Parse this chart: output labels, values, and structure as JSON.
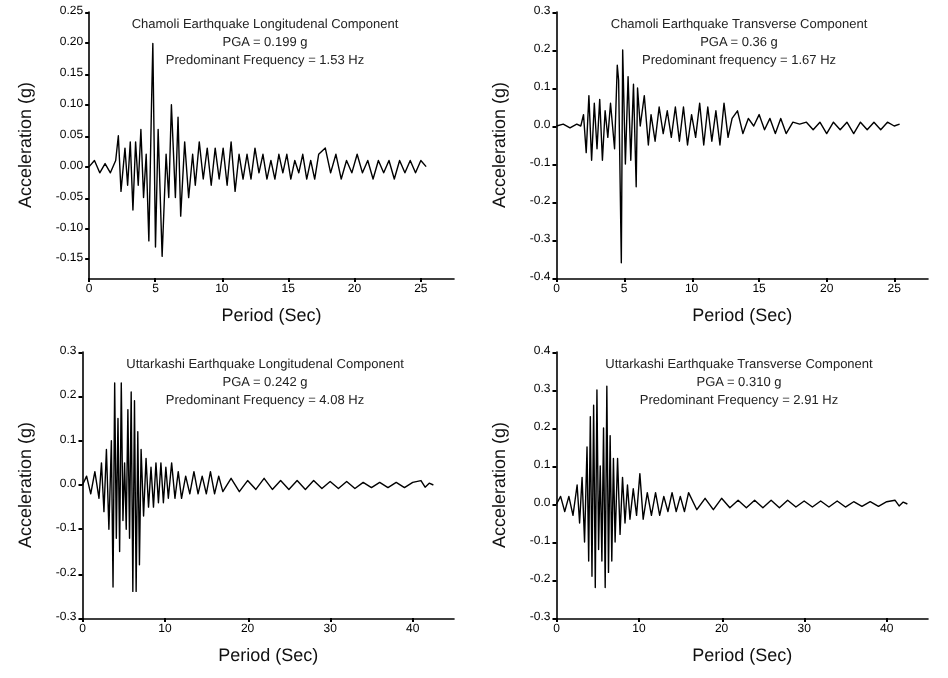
{
  "chart_data": [
    {
      "type": "line",
      "title": "Chamoli Earthquake Longitudenal Component",
      "annotations": [
        "PGA = 0.199 g",
        "Predominant Frequency = 1.53 Hz"
      ],
      "xlabel": "Period (Sec)",
      "ylabel": "Acceleration (g)",
      "grid": false,
      "marker": "none",
      "xlim": [
        0,
        27.5
      ],
      "ylim": [
        -0.18,
        0.25
      ],
      "xticks": [
        0,
        5,
        10,
        15,
        20,
        25
      ],
      "yticks": [
        {
          "value": -0.15,
          "label": "-0.15"
        },
        {
          "value": -0.1,
          "label": "-0.10"
        },
        {
          "value": -0.05,
          "label": "-0.05"
        },
        {
          "value": 0,
          "label": "0.00"
        },
        {
          "value": 0.05,
          "label": "0.05"
        },
        {
          "value": 0.1,
          "label": "0.10"
        },
        {
          "value": 0.15,
          "label": "0.15"
        },
        {
          "value": 0.2,
          "label": "0.20"
        },
        {
          "value": 0.25,
          "label": "0.25"
        }
      ],
      "series": [
        {
          "color": "#000000",
          "x": [
            0,
            0.4,
            0.8,
            1.2,
            1.6,
            2.0,
            2.2,
            2.4,
            2.7,
            2.9,
            3.1,
            3.3,
            3.5,
            3.7,
            3.9,
            4.1,
            4.3,
            4.5,
            4.7,
            4.8,
            5.0,
            5.2,
            5.5,
            5.8,
            6.0,
            6.2,
            6.5,
            6.7,
            6.9,
            7.2,
            7.5,
            7.8,
            8.0,
            8.3,
            8.6,
            8.9,
            9.2,
            9.5,
            9.8,
            10.1,
            10.4,
            10.7,
            11.0,
            11.3,
            11.6,
            11.9,
            12.2,
            12.5,
            12.8,
            13.1,
            13.4,
            13.7,
            14.0,
            14.3,
            14.6,
            14.9,
            15.2,
            15.5,
            15.8,
            16.1,
            16.4,
            16.7,
            17.0,
            17.3,
            17.8,
            18.2,
            18.6,
            19.0,
            19.4,
            19.8,
            20.2,
            20.6,
            21.0,
            21.4,
            21.8,
            22.2,
            22.6,
            23.0,
            23.4,
            23.8,
            24.2,
            24.6,
            25.0,
            25.4
          ],
          "values": [
            0,
            0.01,
            -0.01,
            0.005,
            -0.01,
            0.01,
            0.05,
            -0.04,
            0.03,
            -0.03,
            0.04,
            -0.07,
            0.04,
            -0.03,
            0.06,
            -0.05,
            0.02,
            -0.12,
            0.1,
            0.199,
            -0.13,
            0.06,
            -0.145,
            0.02,
            -0.05,
            0.1,
            -0.05,
            0.08,
            -0.08,
            0.04,
            -0.05,
            0.02,
            -0.03,
            0.04,
            -0.02,
            0.03,
            -0.03,
            0.03,
            -0.02,
            0.03,
            -0.03,
            0.04,
            -0.04,
            0.02,
            -0.02,
            0.02,
            -0.02,
            0.03,
            -0.01,
            0.02,
            -0.02,
            0.01,
            -0.02,
            0.02,
            -0.01,
            0.02,
            -0.02,
            0.01,
            -0.01,
            0.02,
            -0.02,
            0.01,
            -0.02,
            0.02,
            0.03,
            -0.01,
            0.02,
            -0.02,
            0.01,
            -0.01,
            0.02,
            -0.01,
            0.01,
            -0.02,
            0.01,
            -0.01,
            0.01,
            -0.02,
            0.01,
            -0.01,
            0.01,
            -0.01,
            0.01,
            0
          ]
        }
      ]
    },
    {
      "type": "line",
      "title": "Chamoli Earthquake Transverse Component",
      "annotations": [
        "PGA = 0.36 g",
        "Predominant frequency = 1.67 Hz"
      ],
      "xlabel": "Period (Sec)",
      "ylabel": "Acceleration (g)",
      "grid": false,
      "marker": "none",
      "xlim": [
        0,
        27.5
      ],
      "ylim": [
        -0.4,
        0.3
      ],
      "xticks": [
        0,
        5,
        10,
        15,
        20,
        25
      ],
      "yticks": [
        -0.4,
        -0.3,
        -0.2,
        -0.1,
        {
          "value": 0,
          "label": "0.0"
        },
        0.1,
        0.2,
        0.3
      ],
      "series": [
        {
          "color": "#000000",
          "x": [
            0,
            0.5,
            1,
            1.5,
            1.8,
            2.0,
            2.2,
            2.4,
            2.6,
            2.8,
            3.0,
            3.2,
            3.4,
            3.6,
            3.8,
            4.0,
            4.3,
            4.5,
            4.6,
            4.8,
            4.9,
            5.1,
            5.3,
            5.5,
            5.7,
            5.9,
            6.0,
            6.2,
            6.5,
            6.8,
            7.0,
            7.3,
            7.6,
            7.9,
            8.2,
            8.5,
            8.8,
            9.1,
            9.4,
            9.7,
            10.0,
            10.3,
            10.6,
            10.9,
            11.2,
            11.5,
            11.8,
            12.1,
            12.4,
            12.7,
            13.0,
            13.4,
            13.8,
            14.2,
            14.6,
            15.0,
            15.4,
            15.8,
            16.2,
            16.6,
            17.0,
            17.5,
            18,
            18.5,
            19,
            19.5,
            20,
            20.5,
            21,
            21.5,
            22,
            22.5,
            23,
            23.5,
            24,
            24.5,
            25,
            25.4
          ],
          "values": [
            0,
            0.005,
            -0.005,
            0.005,
            0,
            0.03,
            -0.07,
            0.08,
            -0.09,
            0.06,
            -0.06,
            0.07,
            -0.09,
            0.04,
            -0.03,
            0.06,
            -0.06,
            0.16,
            0.12,
            -0.36,
            0.2,
            -0.1,
            0.13,
            -0.09,
            0.11,
            -0.16,
            0.1,
            0,
            0.08,
            -0.05,
            0.03,
            -0.04,
            0.05,
            -0.02,
            0.04,
            -0.03,
            0.05,
            -0.04,
            0.05,
            -0.05,
            0.03,
            -0.03,
            0.06,
            -0.05,
            0.05,
            -0.04,
            0.04,
            -0.05,
            0.06,
            -0.03,
            0.02,
            0.04,
            -0.02,
            0.02,
            0,
            0.03,
            -0.01,
            0.02,
            -0.02,
            0.02,
            -0.02,
            0.01,
            0.005,
            0.01,
            -0.01,
            0.01,
            -0.02,
            0.01,
            -0.01,
            0.01,
            -0.02,
            0.01,
            -0.01,
            0.01,
            -0.01,
            0.01,
            0,
            0.005
          ]
        }
      ]
    },
    {
      "type": "line",
      "title": "Uttarkashi Earthquake Longitudenal Component",
      "annotations": [
        "PGA = 0.242 g",
        "Predominant Frequency = 4.08 Hz"
      ],
      "xlabel": "Period (Sec)",
      "ylabel": "Acceleration (g)",
      "grid": false,
      "marker": "none",
      "xlim": [
        0,
        45
      ],
      "ylim": [
        -0.3,
        0.3
      ],
      "xticks": [
        0,
        10,
        20,
        30,
        40
      ],
      "yticks": [
        -0.3,
        -0.2,
        -0.1,
        {
          "value": 0,
          "label": "0.0"
        },
        0.1,
        0.2,
        0.3
      ],
      "series": [
        {
          "color": "#000000",
          "x": [
            0,
            0.5,
            1,
            1.5,
            2,
            2.3,
            2.6,
            2.9,
            3.2,
            3.5,
            3.7,
            3.9,
            4.1,
            4.3,
            4.5,
            4.7,
            4.9,
            5.1,
            5.3,
            5.5,
            5.7,
            5.9,
            6.1,
            6.3,
            6.5,
            6.7,
            6.9,
            7.1,
            7.4,
            7.7,
            8.0,
            8.3,
            8.6,
            8.9,
            9.2,
            9.5,
            9.8,
            10.1,
            10.4,
            10.8,
            11.2,
            11.6,
            12,
            12.5,
            13,
            13.5,
            14,
            14.5,
            15,
            15.5,
            16,
            16.5,
            17,
            18,
            19,
            20,
            21,
            22,
            23,
            24,
            25,
            26,
            27,
            28,
            29,
            30,
            31,
            32,
            33,
            34,
            35,
            36,
            37,
            38,
            39,
            40,
            41,
            41.5,
            42,
            42.5
          ],
          "values": [
            0,
            0.02,
            -0.02,
            0.03,
            -0.03,
            0.05,
            -0.06,
            0.08,
            -0.1,
            0.1,
            -0.23,
            0.23,
            -0.12,
            0.15,
            -0.15,
            0.23,
            -0.08,
            0.05,
            -0.1,
            0.17,
            -0.12,
            0.21,
            -0.24,
            0.19,
            -0.24,
            0.12,
            -0.18,
            0.08,
            -0.07,
            0.06,
            -0.05,
            0.04,
            -0.05,
            0.05,
            -0.04,
            0.05,
            -0.04,
            0.04,
            -0.03,
            0.05,
            -0.03,
            0.03,
            -0.03,
            0.02,
            -0.02,
            0.03,
            -0.02,
            0.02,
            -0.02,
            0.03,
            -0.02,
            0.02,
            -0.015,
            0.015,
            -0.015,
            0.01,
            -0.01,
            0.015,
            -0.01,
            0.01,
            -0.01,
            0.01,
            -0.01,
            0.01,
            -0.008,
            0.008,
            -0.008,
            0.008,
            -0.008,
            0.006,
            -0.006,
            0.006,
            -0.006,
            0.006,
            -0.006,
            0.006,
            0.01,
            -0.005,
            0.004,
            0
          ]
        }
      ]
    },
    {
      "type": "line",
      "title": "Uttarkashi Earthquake Transverse Component",
      "annotations": [
        "PGA = 0.310 g",
        "Predominant Frequency = 2.91 Hz"
      ],
      "xlabel": "Period (Sec)",
      "ylabel": "Acceleration (g)",
      "grid": false,
      "marker": "none",
      "xlim": [
        0,
        45
      ],
      "ylim": [
        -0.3,
        0.4
      ],
      "xticks": [
        0,
        10,
        20,
        30,
        40
      ],
      "yticks": [
        -0.3,
        -0.2,
        -0.1,
        {
          "value": 0,
          "label": "0.0"
        },
        0.1,
        0.2,
        0.3,
        0.4
      ],
      "series": [
        {
          "color": "#000000",
          "x": [
            0,
            0.5,
            1,
            1.5,
            2,
            2.5,
            2.8,
            3.1,
            3.4,
            3.7,
            3.9,
            4.1,
            4.3,
            4.5,
            4.7,
            4.9,
            5.1,
            5.3,
            5.5,
            5.7,
            5.9,
            6.1,
            6.3,
            6.5,
            6.7,
            6.9,
            7.1,
            7.4,
            7.7,
            8.0,
            8.3,
            8.6,
            8.9,
            9.3,
            9.7,
            10.1,
            10.5,
            11,
            11.5,
            12,
            12.5,
            13,
            13.5,
            14,
            14.5,
            15,
            15.5,
            16,
            17,
            18,
            19,
            20,
            21,
            22,
            23,
            24,
            25,
            26,
            27,
            28,
            29,
            30,
            31,
            32,
            33,
            34,
            35,
            36,
            37,
            38,
            39,
            40,
            41,
            41.5,
            42,
            42.5
          ],
          "values": [
            0,
            0.02,
            -0.02,
            0.02,
            -0.03,
            0.05,
            -0.05,
            0.07,
            -0.1,
            0.15,
            -0.15,
            0.23,
            -0.19,
            0.26,
            -0.22,
            0.3,
            -0.12,
            0.1,
            -0.15,
            0.2,
            -0.22,
            0.31,
            -0.18,
            0.18,
            -0.15,
            0.12,
            -0.1,
            0.12,
            -0.08,
            0.07,
            -0.05,
            0.05,
            -0.04,
            0.04,
            -0.03,
            0.08,
            -0.04,
            0.03,
            -0.03,
            0.03,
            -0.03,
            0.02,
            -0.02,
            0.03,
            -0.02,
            0.02,
            -0.02,
            0.03,
            -0.015,
            0.015,
            -0.015,
            0.015,
            -0.01,
            0.01,
            -0.01,
            0.01,
            -0.01,
            0.01,
            -0.01,
            0.01,
            -0.008,
            0.008,
            -0.008,
            0.008,
            -0.008,
            0.008,
            -0.008,
            0.006,
            -0.006,
            0.006,
            -0.006,
            0.006,
            0.01,
            -0.005,
            0.005,
            0
          ]
        }
      ]
    }
  ]
}
